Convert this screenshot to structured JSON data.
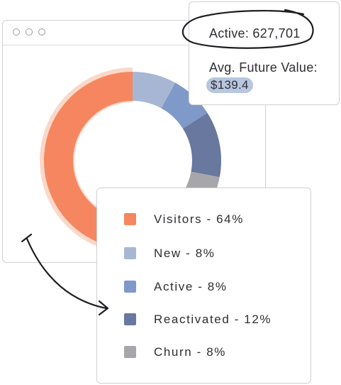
{
  "tooltip": {
    "active_label": "Active: 627,701",
    "avg_label": "Avg. Future Value:",
    "avg_value": "$139.4",
    "highlight_color": "#b8c6df"
  },
  "chart_data": {
    "type": "pie",
    "variant": "donut",
    "categories": [
      "Visitors",
      "New",
      "Active",
      "Reactivated",
      "Churn"
    ],
    "values": [
      64,
      8,
      8,
      12,
      8
    ],
    "unit": "%",
    "colors": [
      "#f5865f",
      "#a7b7d3",
      "#7f99c8",
      "#68789e",
      "#a6a6ab"
    ],
    "legend": {
      "placement": "bottom-right",
      "entries": [
        {
          "label": "Visitors - 64%",
          "color": "#f5865f"
        },
        {
          "label": "New - 8%",
          "color": "#a7b7d3"
        },
        {
          "label": "Active - 8%",
          "color": "#7f99c8"
        },
        {
          "label": "Reactivated - 12%",
          "color": "#68789e"
        },
        {
          "label": "Churn - 8%",
          "color": "#a6a6ab"
        }
      ]
    }
  }
}
